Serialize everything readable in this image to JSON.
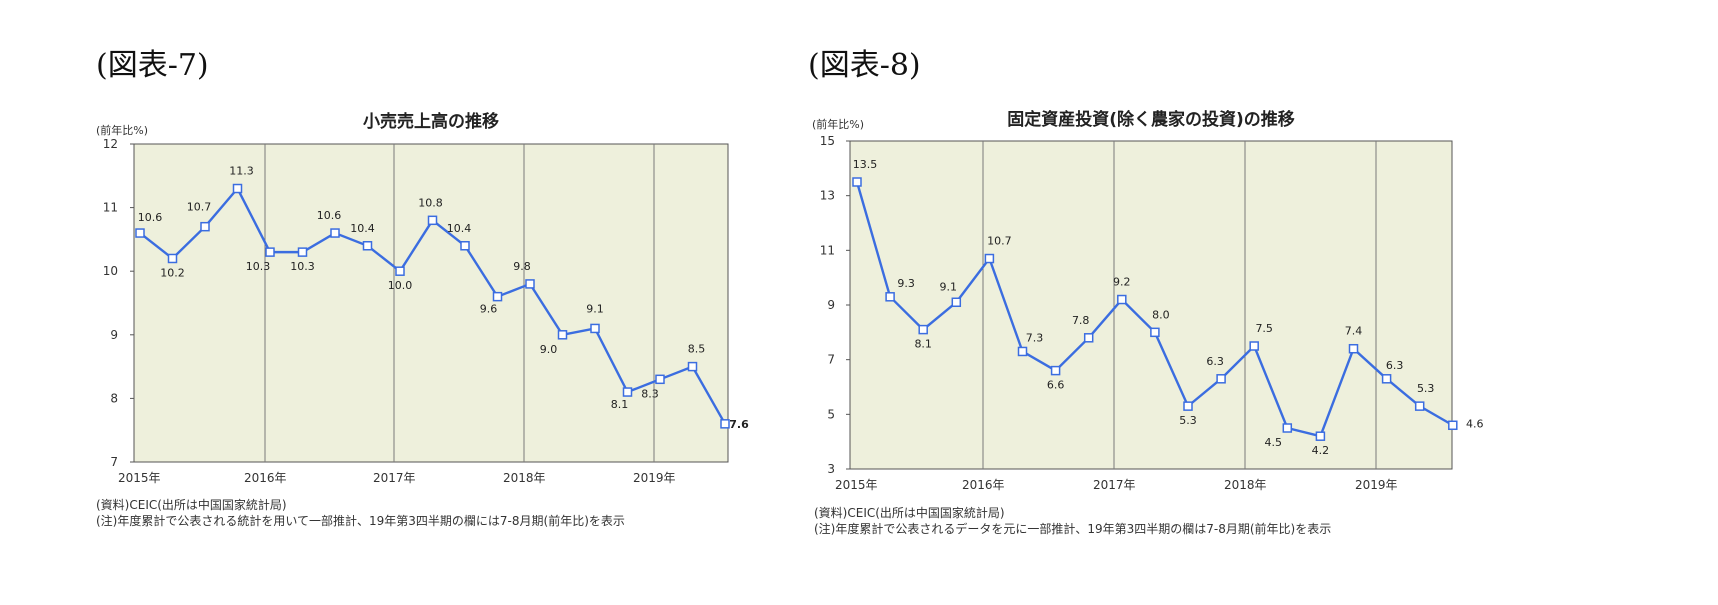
{
  "figures": [
    {
      "label": "(図表-7)"
    },
    {
      "label": "(図表-8)"
    }
  ],
  "chart_data": [
    {
      "type": "line",
      "title": "小売売上高の推移",
      "unit_label": "(前年比%)",
      "ylim": [
        7,
        12
      ],
      "y_ticks": [
        "7",
        "8",
        "9",
        "10",
        "11",
        "12"
      ],
      "x_labels": [
        "2015年",
        "2016年",
        "2017年",
        "2018年",
        "2019年"
      ],
      "grid": "vertical at year boundaries",
      "series": [
        {
          "values": [
            10.6,
            10.2,
            10.7,
            11.3,
            10.3,
            10.3,
            10.6,
            10.4,
            10.0,
            10.8,
            10.4,
            9.6,
            9.8,
            9.0,
            9.1,
            8.1,
            8.3,
            8.5,
            7.6
          ]
        }
      ],
      "point_labels": [
        "10.6",
        "10.2",
        "10.7",
        "11.3",
        "10.3",
        "10.3",
        "10.6",
        "10.4",
        "10.0",
        "10.8",
        "10.4",
        "9.6",
        "9.8",
        "9.0",
        "9.1",
        "8.1",
        "8.3",
        "8.5",
        "7.6"
      ],
      "notes": [
        "(資料)CEIC(出所は中国国家統計局)",
        "(注)年度累計で公表される統計を用いて一部推計、19年第3四半期の欄には7-8月期(前年比)を表示"
      ],
      "colors": {
        "line": "#3b6de0",
        "plot_bg": "#eef0dc"
      }
    },
    {
      "type": "line",
      "title": "固定資産投資(除く農家の投資)の推移",
      "unit_label": "(前年比%)",
      "ylim": [
        3,
        15
      ],
      "y_ticks": [
        "3",
        "5",
        "7",
        "9",
        "11",
        "13",
        "15"
      ],
      "x_labels": [
        "2015年",
        "2016年",
        "2017年",
        "2018年",
        "2019年"
      ],
      "grid": "vertical at year boundaries",
      "series": [
        {
          "values": [
            13.5,
            9.3,
            8.1,
            9.1,
            10.7,
            7.3,
            6.6,
            7.8,
            9.2,
            8.0,
            5.3,
            6.3,
            7.5,
            4.5,
            4.2,
            7.4,
            6.3,
            5.3,
            4.6
          ]
        }
      ],
      "point_labels": [
        "13.5",
        "9.3",
        "8.1",
        "9.1",
        "10.7",
        "7.3",
        "6.6",
        "7.8",
        "9.2",
        "8.0",
        "5.3",
        "6.3",
        "7.5",
        "4.5",
        "4.2",
        "7.4",
        "6.3",
        "5.3",
        "4.6"
      ],
      "notes": [
        "(資料)CEIC(出所は中国国家統計局)",
        "(注)年度累計で公表されるデータを元に一部推計、19年第3四半期の欄は7-8月期(前年比)を表示"
      ],
      "colors": {
        "line": "#3b6de0",
        "plot_bg": "#eef0dc"
      }
    }
  ]
}
